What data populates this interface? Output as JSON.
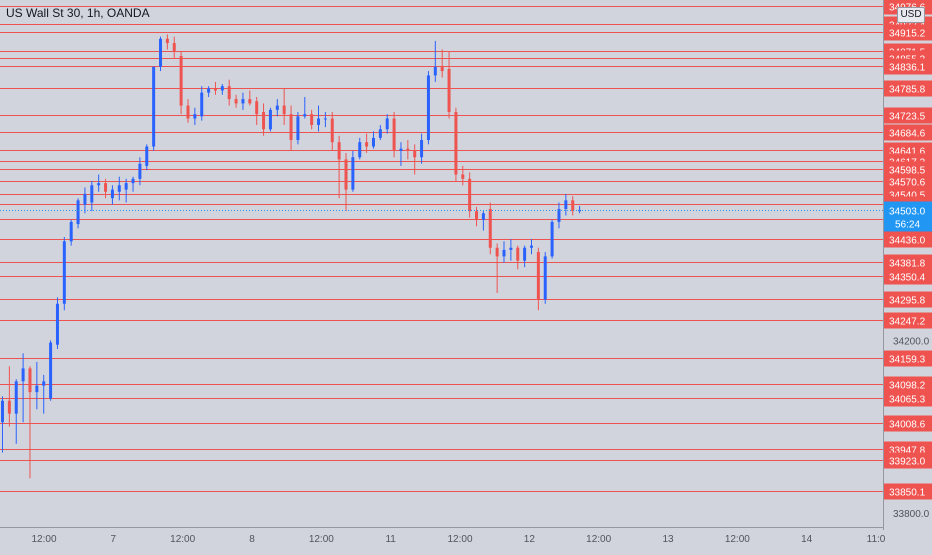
{
  "header": {
    "title": "US Wall St 30, 1h, OANDA",
    "currency": "USD"
  },
  "colors": {
    "background": "#d1d4dc",
    "up": "#2962ff",
    "down": "#ef5350",
    "level_line": "#ef5350",
    "label_bg": "#ef5350",
    "current_label_bg": "#2196f3",
    "axis_text": "#50535e"
  },
  "chart_data": {
    "type": "candlestick",
    "title": "US Wall St 30, 1h, OANDA",
    "grid": false,
    "legend": "none",
    "ylim": [
      33760,
      34990
    ],
    "x_ticks": [
      "12:00",
      "7",
      "12:00",
      "8",
      "12:00",
      "11",
      "12:00",
      "12",
      "12:00",
      "13",
      "12:00",
      "14",
      "11:0"
    ],
    "y_axis_ticks": [
      "34200.0",
      "33800.0"
    ],
    "level_lines": [
      "34976.6",
      "34933.4",
      "34915.2",
      "34871.5",
      "34855.3",
      "34836.1",
      "34785.8",
      "34723.5",
      "34684.6",
      "34641.6",
      "34617.3",
      "34598.5",
      "34570.6",
      "34540.5",
      "34515.8",
      "34482.8",
      "34436.0",
      "34381.8",
      "34350.4",
      "34295.8",
      "34247.2",
      "34159.3",
      "34098.2",
      "34065.3",
      "34008.6",
      "33947.8",
      "33923.0",
      "33850.1"
    ],
    "current_price": {
      "value": "34503.0",
      "countdown": "56:24"
    },
    "candles": [
      {
        "o": 34010,
        "h": 34070,
        "l": 33940,
        "c": 34060
      },
      {
        "o": 34060,
        "h": 34140,
        "l": 34000,
        "c": 34030
      },
      {
        "o": 34030,
        "h": 34110,
        "l": 33960,
        "c": 34105
      },
      {
        "o": 34105,
        "h": 34170,
        "l": 34010,
        "c": 34135
      },
      {
        "o": 34135,
        "h": 34140,
        "l": 33880,
        "c": 34080
      },
      {
        "o": 34080,
        "h": 34150,
        "l": 34040,
        "c": 34095
      },
      {
        "o": 34095,
        "h": 34120,
        "l": 34030,
        "c": 34105
      },
      {
        "o": 34065,
        "h": 34200,
        "l": 34060,
        "c": 34195
      },
      {
        "o": 34190,
        "h": 34300,
        "l": 34180,
        "c": 34285
      },
      {
        "o": 34285,
        "h": 34440,
        "l": 34270,
        "c": 34430
      },
      {
        "o": 34430,
        "h": 34480,
        "l": 34420,
        "c": 34475
      },
      {
        "o": 34470,
        "h": 34530,
        "l": 34460,
        "c": 34525
      },
      {
        "o": 34515,
        "h": 34555,
        "l": 34495,
        "c": 34540
      },
      {
        "o": 34520,
        "h": 34570,
        "l": 34500,
        "c": 34560
      },
      {
        "o": 34560,
        "h": 34585,
        "l": 34545,
        "c": 34565
      },
      {
        "o": 34565,
        "h": 34575,
        "l": 34530,
        "c": 34545
      },
      {
        "o": 34530,
        "h": 34560,
        "l": 34515,
        "c": 34550
      },
      {
        "o": 34545,
        "h": 34580,
        "l": 34525,
        "c": 34560
      },
      {
        "o": 34550,
        "h": 34575,
        "l": 34520,
        "c": 34565
      },
      {
        "o": 34565,
        "h": 34580,
        "l": 34545,
        "c": 34575
      },
      {
        "o": 34575,
        "h": 34625,
        "l": 34560,
        "c": 34610
      },
      {
        "o": 34605,
        "h": 34655,
        "l": 34595,
        "c": 34650
      },
      {
        "o": 34650,
        "h": 34835,
        "l": 34640,
        "c": 34835
      },
      {
        "o": 34835,
        "h": 34905,
        "l": 34825,
        "c": 34900
      },
      {
        "o": 34900,
        "h": 34910,
        "l": 34875,
        "c": 34890
      },
      {
        "o": 34890,
        "h": 34905,
        "l": 34855,
        "c": 34870
      },
      {
        "o": 34860,
        "h": 34870,
        "l": 34725,
        "c": 34745
      },
      {
        "o": 34745,
        "h": 34760,
        "l": 34705,
        "c": 34715
      },
      {
        "o": 34715,
        "h": 34740,
        "l": 34700,
        "c": 34725
      },
      {
        "o": 34720,
        "h": 34790,
        "l": 34710,
        "c": 34775
      },
      {
        "o": 34775,
        "h": 34790,
        "l": 34765,
        "c": 34785
      },
      {
        "o": 34785,
        "h": 34800,
        "l": 34770,
        "c": 34780
      },
      {
        "o": 34780,
        "h": 34795,
        "l": 34770,
        "c": 34790
      },
      {
        "o": 34790,
        "h": 34805,
        "l": 34745,
        "c": 34760
      },
      {
        "o": 34760,
        "h": 34770,
        "l": 34740,
        "c": 34750
      },
      {
        "o": 34750,
        "h": 34775,
        "l": 34735,
        "c": 34760
      },
      {
        "o": 34760,
        "h": 34780,
        "l": 34745,
        "c": 34750
      },
      {
        "o": 34755,
        "h": 34765,
        "l": 34700,
        "c": 34725
      },
      {
        "o": 34730,
        "h": 34750,
        "l": 34675,
        "c": 34690
      },
      {
        "o": 34690,
        "h": 34740,
        "l": 34685,
        "c": 34735
      },
      {
        "o": 34735,
        "h": 34760,
        "l": 34720,
        "c": 34745
      },
      {
        "o": 34745,
        "h": 34785,
        "l": 34700,
        "c": 34725
      },
      {
        "o": 34725,
        "h": 34745,
        "l": 34640,
        "c": 34665
      },
      {
        "o": 34665,
        "h": 34730,
        "l": 34655,
        "c": 34720
      },
      {
        "o": 34720,
        "h": 34765,
        "l": 34715,
        "c": 34725
      },
      {
        "o": 34725,
        "h": 34735,
        "l": 34690,
        "c": 34700
      },
      {
        "o": 34700,
        "h": 34745,
        "l": 34685,
        "c": 34715
      },
      {
        "o": 34715,
        "h": 34730,
        "l": 34695,
        "c": 34715
      },
      {
        "o": 34715,
        "h": 34730,
        "l": 34640,
        "c": 34660
      },
      {
        "o": 34660,
        "h": 34675,
        "l": 34530,
        "c": 34620
      },
      {
        "o": 34620,
        "h": 34635,
        "l": 34500,
        "c": 34550
      },
      {
        "o": 34550,
        "h": 34640,
        "l": 34545,
        "c": 34625
      },
      {
        "o": 34625,
        "h": 34670,
        "l": 34620,
        "c": 34660
      },
      {
        "o": 34660,
        "h": 34680,
        "l": 34635,
        "c": 34650
      },
      {
        "o": 34650,
        "h": 34685,
        "l": 34645,
        "c": 34670
      },
      {
        "o": 34670,
        "h": 34700,
        "l": 34665,
        "c": 34690
      },
      {
        "o": 34690,
        "h": 34725,
        "l": 34680,
        "c": 34715
      },
      {
        "o": 34715,
        "h": 34730,
        "l": 34625,
        "c": 34640
      },
      {
        "o": 34640,
        "h": 34660,
        "l": 34605,
        "c": 34645
      },
      {
        "o": 34645,
        "h": 34665,
        "l": 34620,
        "c": 34640
      },
      {
        "o": 34640,
        "h": 34655,
        "l": 34585,
        "c": 34625
      },
      {
        "o": 34625,
        "h": 34680,
        "l": 34610,
        "c": 34665
      },
      {
        "o": 34665,
        "h": 34825,
        "l": 34655,
        "c": 34815
      },
      {
        "o": 34815,
        "h": 34895,
        "l": 34800,
        "c": 34835
      },
      {
        "o": 34835,
        "h": 34875,
        "l": 34810,
        "c": 34825
      },
      {
        "o": 34830,
        "h": 34870,
        "l": 34715,
        "c": 34730
      },
      {
        "o": 34730,
        "h": 34740,
        "l": 34570,
        "c": 34585
      },
      {
        "o": 34585,
        "h": 34605,
        "l": 34560,
        "c": 34575
      },
      {
        "o": 34575,
        "h": 34590,
        "l": 34485,
        "c": 34500
      },
      {
        "o": 34500,
        "h": 34510,
        "l": 34465,
        "c": 34480
      },
      {
        "o": 34480,
        "h": 34500,
        "l": 34455,
        "c": 34495
      },
      {
        "o": 34505,
        "h": 34520,
        "l": 34400,
        "c": 34415
      },
      {
        "o": 34415,
        "h": 34425,
        "l": 34310,
        "c": 34395
      },
      {
        "o": 34395,
        "h": 34430,
        "l": 34380,
        "c": 34410
      },
      {
        "o": 34410,
        "h": 34435,
        "l": 34385,
        "c": 34415
      },
      {
        "o": 34415,
        "h": 34420,
        "l": 34365,
        "c": 34385
      },
      {
        "o": 34385,
        "h": 34420,
        "l": 34370,
        "c": 34415
      },
      {
        "o": 34415,
        "h": 34435,
        "l": 34400,
        "c": 34420
      },
      {
        "o": 34405,
        "h": 34415,
        "l": 34270,
        "c": 34295
      },
      {
        "o": 34295,
        "h": 34405,
        "l": 34285,
        "c": 34395
      },
      {
        "o": 34395,
        "h": 34480,
        "l": 34390,
        "c": 34475
      },
      {
        "o": 34475,
        "h": 34520,
        "l": 34460,
        "c": 34505
      },
      {
        "o": 34505,
        "h": 34540,
        "l": 34490,
        "c": 34525
      },
      {
        "o": 34525,
        "h": 34535,
        "l": 34490,
        "c": 34500
      },
      {
        "o": 34500,
        "h": 34512,
        "l": 34495,
        "c": 34503
      }
    ]
  }
}
